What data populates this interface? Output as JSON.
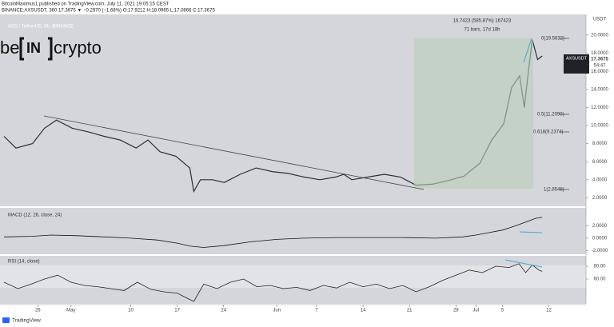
{
  "header": {
    "line1": "BitcoinMaximus1 published on TradingView.com, July 11, 2021 19:05:15 CEST",
    "line2": "BINANCE:AXSUSDT, 360  17.3675  ▼ −0.2970 (−1.68%)  O:17.9212  H:18.0965  L:17.0866  C:17.3675"
  },
  "logo": [
    "be",
    "IN",
    "crypto"
  ],
  "footer": "TradingView",
  "chart_data": [
    {
      "type": "line",
      "title": "AXS / TetherUS, 6h, BINANCE",
      "unit": "USDT",
      "symbol": "AXSUSDT",
      "last_price": "17.3675",
      "countdown": "54:47",
      "measure": [
        "16.7423 (585.87%) 167423",
        "71 bars, 17d 18h"
      ],
      "fib_labels": [
        "0(19.5632)",
        "0.5(11.2090)",
        "0.618(9.2374)",
        "1(2.8548)"
      ],
      "color": "#2a2e39",
      "x": [
        -5.1,
        -3.3,
        -0.8,
        1.0,
        2.8,
        5.2,
        7.6,
        10.0,
        12.4,
        14.8,
        16.6,
        18.4,
        20.8,
        22.9,
        23.5,
        24.5,
        26.3,
        28.1,
        30.5,
        32.9,
        35.3,
        37.7,
        40.1,
        42.5,
        44.9,
        46.1,
        47.3,
        49.8,
        52.2,
        54.6,
        57.0,
        59.4,
        61.8,
        64.2,
        66.6,
        68.4,
        70.2,
        71.4,
        72.6,
        73.3,
        73.9,
        74.5,
        75.3,
        76.0
      ],
      "values": [
        8.8,
        7.5,
        8.0,
        9.7,
        10.6,
        9.7,
        9.3,
        8.8,
        8.4,
        7.5,
        8.4,
        7.1,
        6.6,
        5.3,
        2.7,
        4.0,
        4.0,
        3.7,
        4.6,
        5.3,
        4.9,
        4.7,
        4.3,
        4.0,
        4.3,
        4.6,
        4.0,
        4.3,
        4.6,
        4.3,
        3.4,
        3.5,
        3.9,
        4.4,
        5.8,
        8.4,
        10.2,
        14.2,
        15.5,
        12.0,
        15.9,
        19.5,
        17.3,
        17.7
      ],
      "xlim": [
        -5.7,
        82.6
      ],
      "ylim": [
        1.06,
        22.3
      ],
      "xticks": [
        {
          "value": 0,
          "label": "26"
        },
        {
          "value": 5,
          "label": "May"
        },
        {
          "value": 14,
          "label": "10"
        },
        {
          "value": 21,
          "label": "17"
        },
        {
          "value": 28,
          "label": "24"
        },
        {
          "value": 36,
          "label": "Jun"
        },
        {
          "value": 42,
          "label": "7"
        },
        {
          "value": 49,
          "label": "14"
        },
        {
          "value": 56,
          "label": "21"
        },
        {
          "value": 63,
          "label": "28"
        },
        {
          "value": 66,
          "label": "Jul"
        },
        {
          "value": 70,
          "label": "5"
        },
        {
          "value": 77,
          "label": "12"
        }
      ],
      "yticks": [
        {
          "value": 20,
          "label": "20.0000"
        },
        {
          "value": 18,
          "label": "18.0000"
        },
        {
          "value": 16,
          "label": "16.0000"
        },
        {
          "value": 14,
          "label": "14.0000"
        },
        {
          "value": 12,
          "label": "12.0000"
        },
        {
          "value": 10,
          "label": "10.0000"
        },
        {
          "value": 8,
          "label": "8.0000"
        },
        {
          "value": 6,
          "label": "6.0000"
        },
        {
          "value": 4,
          "label": "4.0000"
        },
        {
          "value": 2,
          "label": "2.0000"
        }
      ]
    },
    {
      "type": "line",
      "title": "MACD (12, 26, close, 24)",
      "color": "#111111",
      "x": [
        -5.1,
        -1,
        2,
        6,
        10,
        14,
        18,
        21,
        23,
        25,
        28,
        32,
        36,
        40,
        45,
        50,
        55,
        60,
        64,
        66,
        68,
        70,
        72,
        73.5,
        75,
        76
      ],
      "values": [
        0.2,
        0.3,
        0.5,
        0.4,
        0.2,
        0.0,
        -0.3,
        -0.8,
        -1.3,
        -1.5,
        -1.2,
        -0.6,
        -0.2,
        0.0,
        0.1,
        0.1,
        0.1,
        0.0,
        0.2,
        0.5,
        0.9,
        1.3,
        2.0,
        2.6,
        3.2,
        3.4
      ],
      "xlim": [
        -5.7,
        82.6
      ],
      "ylim": [
        -2.6,
        4.9
      ],
      "yticks": [
        {
          "value": 2,
          "label": "2.0000"
        },
        {
          "value": 0,
          "label": "0.0000"
        },
        {
          "value": -2,
          "label": "-2.0000"
        }
      ]
    },
    {
      "type": "line",
      "title": "RSI (14, close)",
      "color": "#222222",
      "x": [
        -5.1,
        -3,
        -1,
        1,
        3,
        5,
        7,
        9,
        11,
        13,
        15,
        17,
        19,
        21,
        22.5,
        23.5,
        25,
        27,
        29,
        31,
        33,
        35,
        37,
        39,
        41,
        43,
        45,
        47,
        49,
        51,
        53,
        55,
        57,
        59,
        61,
        63,
        65,
        67,
        69,
        71,
        72.5,
        73.5,
        74.5,
        75.5,
        76
      ],
      "values": [
        55,
        45,
        52,
        60,
        66,
        55,
        50,
        48,
        45,
        42,
        55,
        44,
        40,
        38,
        30,
        25,
        52,
        45,
        55,
        60,
        48,
        50,
        45,
        47,
        42,
        50,
        46,
        55,
        48,
        52,
        45,
        50,
        40,
        48,
        58,
        66,
        74,
        70,
        80,
        78,
        84,
        70,
        82,
        74,
        72
      ],
      "xlim": [
        -5.7,
        82.6
      ],
      "ylim": [
        21.25,
        96.25
      ],
      "yticks": [
        {
          "value": 80,
          "label": "80.00"
        },
        {
          "value": 60,
          "label": "60.00"
        }
      ]
    }
  ]
}
